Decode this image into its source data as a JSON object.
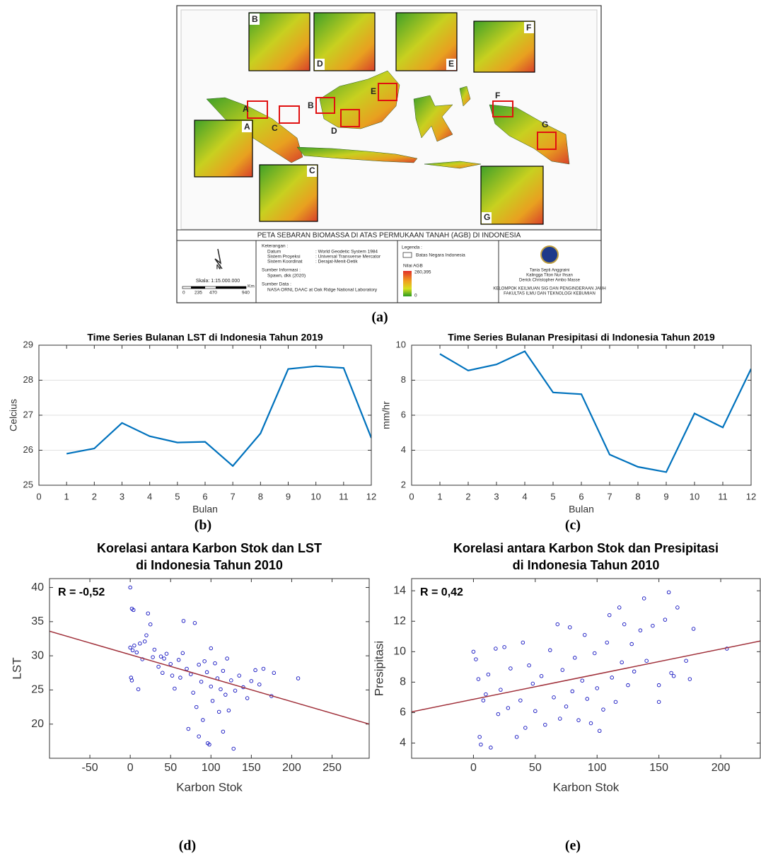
{
  "figure": {
    "panel_labels": [
      "(a)",
      "(b)",
      "(c)",
      "(d)",
      "(e)"
    ],
    "map": {
      "title": "PETA SEBARAN BIOMASSA DI ATAS PERMUKAAN TANAH (AGB) DI INDONESIA",
      "regions": [
        "A",
        "B",
        "C",
        "D",
        "E",
        "F",
        "G"
      ],
      "north": "N",
      "scale": {
        "label": "Skala: 1:15.000.000",
        "ticks": [
          "0",
          "235",
          "470",
          "940"
        ],
        "unit": "Km"
      },
      "keterangan": {
        "heading": "Keterangan :",
        "rows": [
          [
            "Datum",
            ": World Geodetic System 1984"
          ],
          [
            "Sistem Proyeksi",
            ": Universal Transverse Mercator"
          ],
          [
            "Sistem Koordinat",
            ": Derajat-Menit-Detik"
          ]
        ],
        "info_heading": "Sumber Informasi :",
        "info": "Spawn, dkk (2020)",
        "data_heading": "Sumber Data :",
        "data": "NASA ORNL DAAC at Oak Ridge National Laboratory"
      },
      "legend": {
        "heading": "Legenda :",
        "border": "Batas Negara Indonesia",
        "ramp_title": "Nilai AGB",
        "max": "260,395",
        "min": "0"
      },
      "authors": [
        "Tania Septi Anggraini",
        "Kalingga Titon Nur Ihsan",
        "Derick Christopher Ambo Masse"
      ],
      "institution": [
        "KELOMPOK KEILMUAN SIG DAN PENGINDERAAN JAUH",
        "FAKULTAS ILMU DAN TEKNOLOGI KEBUMIAN"
      ]
    }
  },
  "chart_data": [
    {
      "type": "line",
      "title": "Time Series Bulanan LST di Indonesia Tahun 2019",
      "xlabel": "Bulan",
      "ylabel": "Celcius",
      "x": [
        1,
        2,
        3,
        4,
        5,
        6,
        7,
        8,
        9,
        10,
        11,
        12
      ],
      "values": [
        25.9,
        26.05,
        26.78,
        26.4,
        26.22,
        26.24,
        25.55,
        26.48,
        28.32,
        28.4,
        28.35,
        26.35
      ],
      "color": "#0072bd",
      "xlim": [
        0,
        12
      ],
      "xticks": [
        0,
        1,
        2,
        3,
        4,
        5,
        6,
        7,
        8,
        9,
        10,
        11,
        12
      ],
      "ylim": [
        25,
        29
      ],
      "yticks": [
        25,
        26,
        27,
        28,
        29
      ],
      "grid": true
    },
    {
      "type": "line",
      "title": "Time Series Bulanan Presipitasi di Indonesia Tahun 2019",
      "xlabel": "Bulan",
      "ylabel": "mm/hr",
      "x": [
        1,
        2,
        3,
        4,
        5,
        6,
        7,
        8,
        9,
        10,
        11,
        12
      ],
      "values": [
        9.5,
        8.55,
        8.9,
        9.65,
        7.3,
        7.2,
        3.75,
        3.05,
        2.75,
        6.1,
        5.3,
        8.65
      ],
      "color": "#0072bd",
      "xlim": [
        0,
        12
      ],
      "xticks": [
        0,
        1,
        2,
        3,
        4,
        5,
        6,
        7,
        8,
        9,
        10,
        11,
        12
      ],
      "ylim": [
        2,
        10
      ],
      "yticks": [
        2,
        4,
        6,
        8,
        10
      ],
      "grid": true
    },
    {
      "type": "scatter",
      "title": [
        "Korelasi antara Karbon Stok dan LST",
        "di Indonesia Tahun 2010"
      ],
      "annotation": "R = -0,52",
      "xlabel": "Karbon Stok",
      "ylabel": "LST",
      "x": [
        0,
        2,
        4,
        0,
        3,
        5,
        1,
        2,
        8,
        12,
        15,
        18,
        20,
        22,
        25,
        28,
        30,
        35,
        40,
        42,
        45,
        50,
        52,
        55,
        60,
        62,
        66,
        70,
        72,
        75,
        78,
        80,
        82,
        85,
        88,
        90,
        92,
        95,
        96,
        98,
        100,
        102,
        105,
        108,
        110,
        112,
        115,
        118,
        120,
        122,
        125,
        128,
        130,
        135,
        140,
        145,
        150,
        155,
        160,
        165,
        175,
        178,
        208,
        10,
        38,
        65,
        100,
        85,
        115
      ],
      "y": [
        40,
        36.9,
        36.7,
        31.2,
        30.8,
        31.5,
        26.8,
        26.4,
        30.5,
        31.8,
        29.5,
        32.1,
        33,
        36.2,
        34.6,
        29.8,
        30.9,
        28.4,
        27.5,
        29.6,
        30.3,
        28.8,
        27.1,
        25.2,
        29.4,
        26.8,
        35.1,
        28.1,
        19.3,
        27.3,
        24.6,
        34.8,
        22.5,
        28.7,
        26.2,
        20.6,
        29.2,
        27.6,
        17.2,
        17,
        25.5,
        23.4,
        28.9,
        26.7,
        21.8,
        25.1,
        27.8,
        24.3,
        29.6,
        22,
        26.4,
        16.4,
        24.9,
        27.1,
        25.4,
        23.8,
        26.3,
        27.9,
        25.8,
        28.1,
        24.1,
        27.5,
        26.7,
        25.1,
        29.9,
        30.4,
        31.1,
        18.2,
        18.9
      ],
      "color": "#1010c0",
      "fit": {
        "x": [
          -100,
          296
        ],
        "y": [
          33.6,
          20.0
        ],
        "color": "#a0303a"
      },
      "xlim": [
        -100,
        296
      ],
      "xticks": [
        -50,
        0,
        50,
        100,
        150,
        200,
        250
      ],
      "ylim": [
        15,
        41.3
      ],
      "yticks": [
        20,
        25,
        30,
        35,
        40
      ],
      "grid": false
    },
    {
      "type": "scatter",
      "title": [
        "Korelasi antara Karbon Stok dan Presipitasi",
        "di Indonesia Tahun 2010"
      ],
      "annotation": "R = 0,42",
      "xlabel": "Karbon Stok",
      "ylabel": "Presipitasi",
      "x": [
        0,
        2,
        4,
        5,
        6,
        8,
        10,
        12,
        14,
        18,
        20,
        22,
        25,
        28,
        30,
        35,
        38,
        40,
        42,
        45,
        48,
        50,
        55,
        58,
        62,
        65,
        68,
        70,
        72,
        75,
        78,
        80,
        82,
        85,
        88,
        90,
        92,
        95,
        98,
        100,
        102,
        105,
        108,
        110,
        112,
        115,
        118,
        120,
        122,
        125,
        128,
        130,
        135,
        138,
        140,
        145,
        150,
        155,
        158,
        160,
        165,
        172,
        175,
        178,
        205,
        150,
        162
      ],
      "y": [
        10,
        9.5,
        8.2,
        4.4,
        3.9,
        6.8,
        7.2,
        8.5,
        3.7,
        10.2,
        5.9,
        7.5,
        10.3,
        6.3,
        8.9,
        4.4,
        6.8,
        10.6,
        5,
        9.1,
        7.9,
        6.1,
        8.4,
        5.2,
        10.1,
        7,
        11.8,
        5.6,
        8.8,
        6.4,
        11.6,
        7.4,
        9.6,
        5.5,
        8.1,
        11.1,
        6.9,
        5.3,
        9.9,
        7.6,
        4.8,
        6.2,
        10.6,
        12.4,
        8.3,
        6.7,
        12.9,
        9.3,
        11.8,
        7.8,
        10.5,
        8.7,
        11.4,
        13.5,
        9.4,
        11.7,
        7.8,
        12.1,
        13.9,
        8.6,
        12.9,
        9.4,
        8.2,
        11.5,
        10.2,
        6.7,
        8.4
      ],
      "color": "#1010c0",
      "fit": {
        "x": [
          -50,
          232
        ],
        "y": [
          6.05,
          10.7
        ],
        "color": "#a0303a"
      },
      "xlim": [
        -50,
        232
      ],
      "xticks": [
        0,
        50,
        100,
        150,
        200
      ],
      "ylim": [
        3,
        14.8
      ],
      "yticks": [
        4,
        6,
        8,
        10,
        12,
        14
      ],
      "grid": false
    }
  ]
}
